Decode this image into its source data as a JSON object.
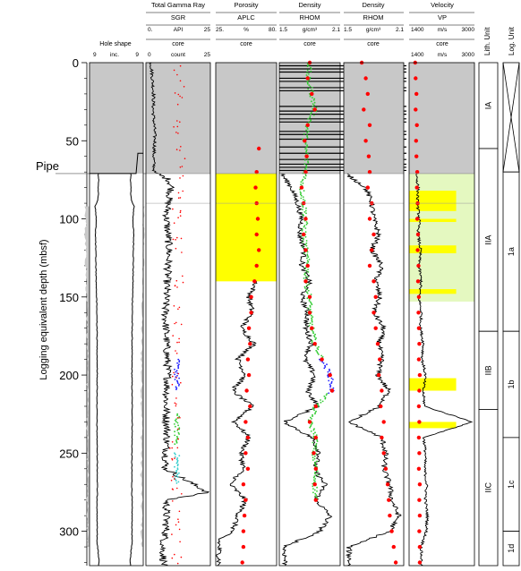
{
  "chart_data": {
    "type": "line",
    "y_axis": {
      "label": "Logging equivalent depth (mbsf)",
      "range": [
        0,
        322
      ],
      "ticks": [
        0,
        50,
        100,
        150,
        200,
        250,
        300
      ],
      "inverted": true
    },
    "pipe_label": "Pipe",
    "pipe_depth": 71,
    "hole_shape": {
      "title": "Hole shape",
      "scale": {
        "left": "9",
        "unit": "inc.",
        "right": "9"
      },
      "profile_depth": [
        71,
        78,
        88,
        92,
        100,
        110,
        130,
        150,
        170,
        200,
        230,
        260,
        290,
        308,
        312,
        318,
        322
      ],
      "profile_diameter": [
        9.6,
        9.4,
        9.8,
        11.4,
        10.8,
        11.2,
        11.0,
        10.6,
        10.3,
        10.2,
        10.4,
        10.1,
        10.3,
        10.2,
        9.8,
        9.2,
        9.4
      ]
    },
    "tracks": [
      {
        "title": "Total Gamma Ray",
        "curve": "SGR",
        "scale": {
          "min_label": "0.",
          "unit": "API",
          "max_label": "25"
        },
        "core_label": "core",
        "core_scale": {
          "min_label": "0",
          "unit": "count",
          "max_label": "25"
        },
        "log_depth": [
          0,
          10,
          20,
          30,
          40,
          50,
          60,
          70,
          75,
          80,
          90,
          100,
          120,
          140,
          160,
          180,
          200,
          220,
          240,
          260,
          275,
          280,
          300,
          310,
          322
        ],
        "log_values": [
          2.0,
          2.5,
          3.0,
          2.8,
          3.2,
          3.5,
          3.0,
          3.2,
          9.0,
          10.0,
          8.5,
          8.0,
          9.0,
          8.2,
          7.5,
          8.0,
          8.5,
          7.8,
          8.2,
          7.5,
          24.0,
          8.0,
          7.8,
          6.5,
          7.0
        ],
        "core_depth": [
          5,
          20,
          40,
          60,
          80,
          100,
          120,
          140,
          160,
          180,
          200,
          220,
          240,
          260,
          280,
          300,
          320
        ],
        "core_values": [
          12,
          13,
          12,
          14,
          13,
          12,
          12,
          13,
          12,
          12,
          12,
          12,
          11,
          11,
          12,
          12,
          12
        ]
      },
      {
        "title": "Porosity",
        "curve": "APLC",
        "scale": {
          "min_label": "25.",
          "unit": "%",
          "max_label": "80."
        },
        "core_label": "core",
        "log_depth": [
          140,
          150,
          160,
          170,
          180,
          190,
          200,
          210,
          220,
          230,
          240,
          250,
          260,
          270,
          280,
          290,
          300,
          305,
          322
        ],
        "log_values": [
          62,
          55,
          58,
          48,
          60,
          45,
          52,
          40,
          58,
          42,
          55,
          48,
          50,
          38,
          52,
          45,
          40,
          28,
          28
        ],
        "core_depth": [
          55,
          70,
          80,
          90,
          100,
          110,
          120,
          130,
          140,
          150,
          160,
          170,
          180,
          190,
          200,
          210,
          220,
          230,
          240,
          250,
          260,
          270,
          280,
          290,
          300,
          310,
          320
        ],
        "core_values": [
          64,
          62,
          61,
          62,
          63,
          62,
          64,
          62,
          60,
          57,
          57,
          55,
          56,
          54,
          55,
          53,
          56,
          52,
          54,
          52,
          54,
          50,
          52,
          51,
          50,
          50,
          49
        ],
        "highlight": {
          "depth_top": 71,
          "depth_bottom": 140
        }
      },
      {
        "title": "Density",
        "curve": "RHOM",
        "scale": {
          "min_label": "1.5",
          "unit": "g/cm³",
          "max_label": "2.1"
        },
        "core_label": "core",
        "log_depth": [
          71,
          80,
          90,
          100,
          110,
          120,
          130,
          140,
          150,
          160,
          170,
          180,
          190,
          200,
          210,
          220,
          230,
          240,
          250,
          260,
          270,
          280,
          290,
          300,
          310,
          322
        ],
        "log_values": [
          1.52,
          1.62,
          1.68,
          1.72,
          1.7,
          1.75,
          1.72,
          1.8,
          1.72,
          1.78,
          1.76,
          1.82,
          1.75,
          1.85,
          1.78,
          1.88,
          1.55,
          1.82,
          1.9,
          1.84,
          1.95,
          1.86,
          2.0,
          1.9,
          1.55,
          1.56
        ],
        "core_depth": [
          0,
          10,
          20,
          30,
          40,
          50,
          60,
          70,
          80,
          90,
          100,
          110,
          120,
          130,
          140,
          150,
          160,
          170,
          180,
          190,
          200,
          210,
          220,
          230,
          240,
          250,
          260,
          270,
          280
        ],
        "core_values": [
          1.8,
          1.78,
          1.82,
          1.85,
          1.78,
          1.75,
          1.77,
          1.76,
          1.72,
          1.74,
          1.76,
          1.74,
          1.76,
          1.78,
          1.76,
          1.8,
          1.8,
          1.82,
          1.85,
          1.92,
          2.0,
          2.02,
          1.86,
          1.8,
          1.86,
          1.84,
          1.86,
          1.85,
          1.86
        ],
        "reflector_depths": [
          2,
          4,
          6,
          10,
          12,
          16,
          18,
          28,
          31,
          33,
          36,
          38,
          44,
          46,
          49,
          54,
          58,
          62,
          65,
          67,
          69
        ]
      },
      {
        "title": "Density",
        "curve": "RHOM",
        "scale": {
          "min_label": "1.5",
          "unit": "g/cm³",
          "max_label": "2.1"
        },
        "core_label": "core",
        "log_depth": [
          71,
          80,
          90,
          100,
          110,
          120,
          130,
          140,
          150,
          160,
          170,
          180,
          190,
          200,
          210,
          220,
          230,
          240,
          250,
          260,
          270,
          280,
          290,
          300,
          310,
          322
        ],
        "log_values": [
          1.52,
          1.72,
          1.78,
          1.8,
          1.85,
          1.78,
          1.88,
          1.82,
          1.86,
          1.8,
          1.9,
          1.85,
          1.88,
          1.84,
          1.95,
          1.86,
          1.55,
          1.88,
          1.92,
          1.9,
          1.96,
          1.98,
          2.05,
          1.96,
          1.55,
          1.56
        ],
        "core_depth": [
          0,
          10,
          20,
          30,
          40,
          50,
          60,
          70,
          80,
          90,
          100,
          110,
          120,
          130,
          140,
          150,
          160,
          170,
          180,
          190,
          200,
          210,
          220,
          230,
          240,
          250,
          260,
          270,
          280,
          290,
          300,
          310,
          320
        ],
        "core_values": [
          1.68,
          1.72,
          1.74,
          1.7,
          1.76,
          1.72,
          1.75,
          1.76,
          1.74,
          1.78,
          1.76,
          1.8,
          1.78,
          1.76,
          1.8,
          1.82,
          1.8,
          1.82,
          1.84,
          1.86,
          1.85,
          1.88,
          1.87,
          1.9,
          1.88,
          1.9,
          1.92,
          1.94,
          1.95,
          1.96,
          1.98,
          2.0,
          2.02
        ]
      },
      {
        "title": "Velocity",
        "curve": "VP",
        "scale": {
          "min_label": "1400",
          "unit": "m/s",
          "max_label": "3000"
        },
        "core_label": "core",
        "core_scale": {
          "min_label": "1400",
          "unit": "m/s",
          "max_label": "3000"
        },
        "log_depth": [
          71,
          80,
          90,
          100,
          110,
          120,
          130,
          140,
          150,
          160,
          170,
          180,
          190,
          200,
          210,
          220,
          230,
          240,
          250,
          260,
          270,
          280,
          290,
          300,
          310,
          322
        ],
        "log_values": [
          1580,
          1620,
          1600,
          1650,
          1620,
          1680,
          1640,
          1700,
          1640,
          1700,
          1680,
          1750,
          1720,
          1800,
          1740,
          1780,
          2950,
          1760,
          1800,
          1780,
          1830,
          1800,
          1850,
          1820,
          1700,
          1700
        ],
        "core_depth": [
          0,
          10,
          20,
          30,
          40,
          50,
          60,
          70,
          80,
          90,
          100,
          110,
          120,
          130,
          140,
          150,
          160,
          170,
          180,
          190,
          200,
          210,
          220,
          230,
          240,
          250,
          260,
          270,
          280,
          290,
          300,
          310,
          320
        ],
        "core_values": [
          1550,
          1560,
          1580,
          1560,
          1590,
          1570,
          1580,
          1600,
          1590,
          1610,
          1600,
          1620,
          1610,
          1630,
          1620,
          1640,
          1630,
          1640,
          1650,
          1640,
          1660,
          1650,
          1640,
          1650,
          1640,
          1650,
          1640,
          1660,
          1650,
          1660,
          1650,
          1660,
          1660
        ],
        "light_zone": {
          "depth_top": 71,
          "depth_bottom": 153
        },
        "highlight_bands": [
          [
            82,
            95
          ],
          [
            100,
            102
          ],
          [
            117,
            122
          ],
          [
            145,
            148
          ],
          [
            202,
            210
          ],
          [
            230,
            234
          ]
        ]
      }
    ],
    "lith_units": {
      "title": "Lith. Unit",
      "units": [
        {
          "label": "IA",
          "top": 0,
          "bottom": 55
        },
        {
          "label": "IIA",
          "top": 55,
          "bottom": 172
        },
        {
          "label": "IIB",
          "top": 172,
          "bottom": 222
        },
        {
          "label": "IIC",
          "top": 222,
          "bottom": 322
        }
      ]
    },
    "log_units": {
      "title": "Log. Unit",
      "units": [
        {
          "label": "",
          "top": 0,
          "bottom": 70,
          "crossed": true
        },
        {
          "label": "1a",
          "top": 70,
          "bottom": 172
        },
        {
          "label": "1b",
          "top": 172,
          "bottom": 240
        },
        {
          "label": "1c",
          "top": 240,
          "bottom": 300
        },
        {
          "label": "1d",
          "top": 300,
          "bottom": 322
        }
      ]
    },
    "colors": {
      "log": "#000000",
      "core": "#ff0000",
      "gray_fill": "#c8c8c8",
      "yellow": "#ffff00",
      "light_green": "#e4f8c0",
      "green_points": "#33cc33",
      "blue_points": "#2222ff",
      "cyan_points": "#33cccc"
    }
  }
}
